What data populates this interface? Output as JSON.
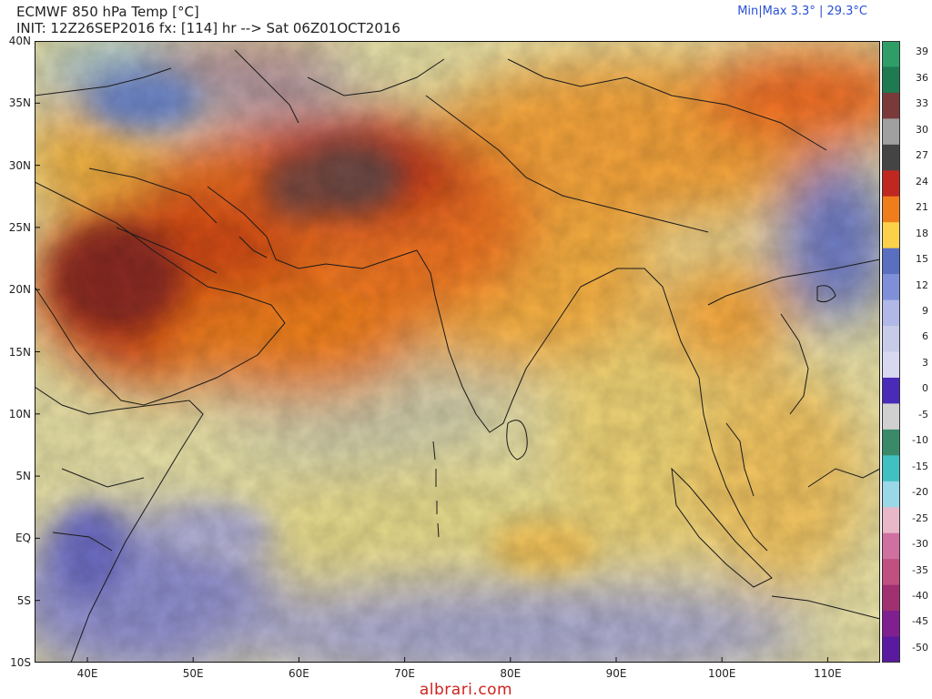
{
  "header": {
    "title_line1": "ECMWF 850 hPa Temp [°C]",
    "title_line2": "INIT: 12Z26SEP2016 fx: [114] hr --> Sat 06Z01OCT2016",
    "minmax": "Min|Max 3.3° | 29.3°C"
  },
  "map": {
    "lat_labels": [
      "40N",
      "35N",
      "30N",
      "25N",
      "20N",
      "15N",
      "10N",
      "5N",
      "EQ",
      "5S",
      "10S"
    ],
    "lon_labels": [
      "40E",
      "50E",
      "60E",
      "70E",
      "80E",
      "90E",
      "100E",
      "110E"
    ]
  },
  "colorbar": {
    "labels": [
      "39",
      "36",
      "33",
      "30",
      "27",
      "24",
      "21",
      "18",
      "15",
      "12",
      "9",
      "6",
      "3",
      "0",
      "-5",
      "-10",
      "-15",
      "-20",
      "-25",
      "-30",
      "-35",
      "-40",
      "-45",
      "-50"
    ],
    "colors": [
      "#2f9e66",
      "#1f7a52",
      "#7a3a3a",
      "#a0a0a0",
      "#444444",
      "#c0281f",
      "#f07d1c",
      "#fbd14a",
      "#5a6fc0",
      "#8090d8",
      "#b0b8e8",
      "#c8cbe8",
      "#d8d8f0",
      "#4a2bb8",
      "#d0d0d0",
      "#3a8a6a",
      "#40c0c0",
      "#9ad8e8",
      "#e8b8c8",
      "#d070a0",
      "#c05080",
      "#a03070",
      "#802090",
      "#5a1aa0"
    ]
  },
  "footer": {
    "watermark": "albrari.com"
  }
}
